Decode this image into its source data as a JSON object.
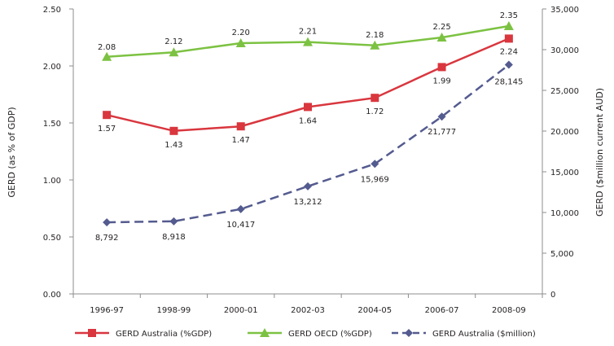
{
  "chart_data": {
    "type": "line",
    "categories": [
      "1996-97",
      "1998-99",
      "2000-01",
      "2002-03",
      "2004-05",
      "2006-07",
      "2008-09"
    ],
    "ylabel_left": "GERD (as % of GDP)",
    "ylabel_right": "GERD ($million current AUD)",
    "ylim_left": [
      0,
      2.5
    ],
    "ylim_right": [
      0,
      35000
    ],
    "yticks_left": [
      "0.00",
      "0.50",
      "1.00",
      "1.50",
      "2.00",
      "2.50"
    ],
    "yticks_right": [
      "0",
      "5,000",
      "10,000",
      "15,000",
      "20,000",
      "25,000",
      "30,000",
      "35,000"
    ],
    "grid": false,
    "legend_position": "bottom",
    "series": [
      {
        "name": "GERD Australia (%GDP)",
        "axis": "left",
        "color": "#d9363e",
        "marker": "square",
        "dashed": false,
        "values": [
          1.57,
          1.43,
          1.47,
          1.64,
          1.72,
          1.99,
          2.24
        ],
        "labels": [
          "1.57",
          "1.43",
          "1.47",
          "1.64",
          "1.72",
          "1.99",
          "2.24"
        ]
      },
      {
        "name": "GERD OECD (%GDP)",
        "axis": "left",
        "color": "#7cc242",
        "marker": "triangle",
        "dashed": false,
        "values": [
          2.08,
          2.12,
          2.2,
          2.21,
          2.18,
          2.25,
          2.35
        ],
        "labels": [
          "2.08",
          "2.12",
          "2.20",
          "2.21",
          "2.18",
          "2.25",
          "2.35"
        ]
      },
      {
        "name": "GERD Australia ($million)",
        "axis": "right",
        "color": "#545b8f",
        "marker": "diamond",
        "dashed": true,
        "values": [
          8792,
          8918,
          10417,
          13212,
          15969,
          21777,
          28145
        ],
        "labels": [
          "8,792",
          "8,918",
          "10,417",
          "13,212",
          "15,969",
          "21,777",
          "28,145"
        ]
      }
    ]
  }
}
